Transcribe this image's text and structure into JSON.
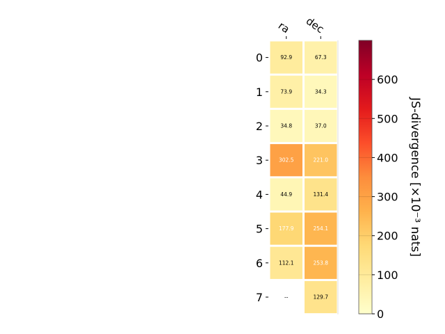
{
  "chart_data": {
    "type": "heatmap",
    "columns": [
      "ra",
      "dec"
    ],
    "rows": [
      "0",
      "1",
      "2",
      "3",
      "4",
      "5",
      "6",
      "7"
    ],
    "values": [
      [
        92.9,
        67.3
      ],
      [
        73.9,
        34.3
      ],
      [
        34.8,
        37.0
      ],
      [
        302.5,
        221.0
      ],
      [
        44.9,
        131.4
      ],
      [
        177.9,
        254.1
      ],
      [
        112.1,
        253.8
      ],
      [
        null,
        129.7
      ]
    ],
    "cell_labels": [
      [
        "92.9",
        "67.3"
      ],
      [
        "73.9",
        "34.3"
      ],
      [
        "34.8",
        "37.0"
      ],
      [
        "302.5",
        "221.0"
      ],
      [
        "44.9",
        "131.4"
      ],
      [
        "177.9",
        "254.1"
      ],
      [
        "112.1",
        "253.8"
      ],
      [
        "--",
        "129.7"
      ]
    ],
    "colorbar": {
      "label": "JS-divergence [×10⁻³ nats]",
      "range": [
        0,
        700
      ],
      "ticks": [
        "0",
        "100",
        "200",
        "300",
        "400",
        "500",
        "600"
      ],
      "colormap": "YlOrRd"
    },
    "colors": {
      "light_text": "#ffffff",
      "dark_text": "#000000",
      "grid": "#ffffff"
    }
  }
}
